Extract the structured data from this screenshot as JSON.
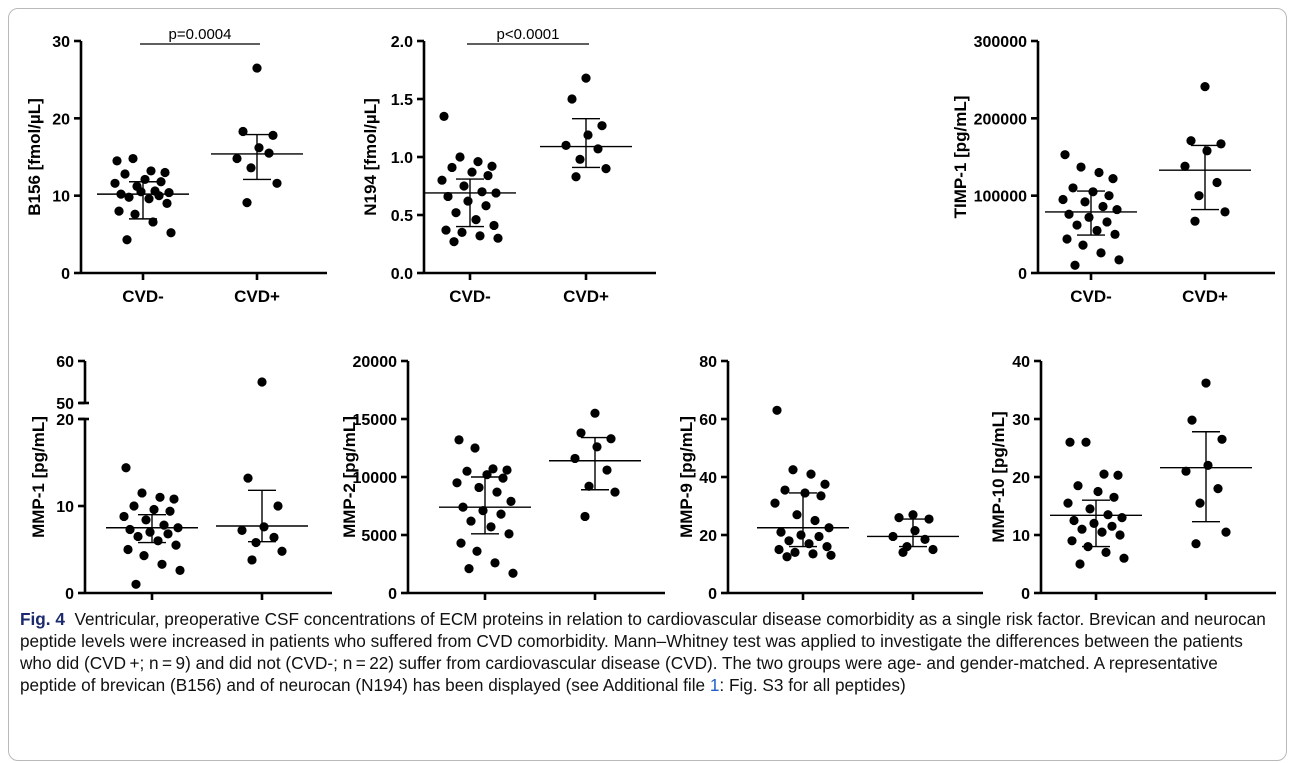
{
  "colors": {
    "marks": "#000000",
    "caption_label": "#1a2a6c",
    "caption_link": "#1f5fc8",
    "frame": "#b9b9b9"
  },
  "caption": {
    "label": "Fig. 4",
    "text_before_link": "Ventricular, preoperative CSF concentrations of ECM proteins in relation to cardiovascular disease comorbidity as a single risk factor. Brevican and neurocan peptide levels were increased in patients who suffered from CVD comorbidity. Mann–Whitney test was applied to investigate the differences between the patients who did (CVD +; n = 9) and did not (CVD-; n = 22) suffer from cardiovascular disease (CVD). The two groups were age- and gender-matched. A representative peptide of brevican (B156) and of neurocan (N194) has been displayed (see Additional file ",
    "link_text": "1",
    "text_after_link": ": Fig. S3 for all peptides)"
  },
  "chart_data": [
    {
      "type": "scatter",
      "ylabel": "B156 [fmol/µL]",
      "categories": [
        "CVD-",
        "CVD+"
      ],
      "ylim": [
        0,
        30
      ],
      "yticks": [
        0,
        10,
        20,
        30
      ],
      "yticklabels": [
        "0",
        "10",
        "20",
        "30"
      ],
      "significance": "p=0.0004",
      "series": [
        {
          "values": [
            14.5,
            14.8,
            13.2,
            13.0,
            12.8,
            12.1,
            11.8,
            11.6,
            11.2,
            10.6,
            10.4,
            10.2,
            10.5,
            10.0,
            9.8,
            9.6,
            9.0,
            8.0,
            7.6,
            6.6,
            5.2,
            4.3
          ],
          "median": 10.2,
          "q1": 7.0,
          "q3": 11.8
        },
        {
          "values": [
            26.5,
            18.3,
            17.8,
            16.2,
            14.8,
            15.5,
            13.6,
            11.6,
            9.1
          ],
          "median": 15.4,
          "q1": 12.1,
          "q3": 17.9
        }
      ]
    },
    {
      "type": "scatter",
      "ylabel": "N194 [fmol/µL]",
      "categories": [
        "CVD-",
        "CVD+"
      ],
      "ylim": [
        0,
        2.0
      ],
      "yticks": [
        0,
        0.5,
        1.0,
        1.5,
        2.0
      ],
      "yticklabels": [
        "0.0",
        "0.5",
        "1.0",
        "1.5",
        "2.0"
      ],
      "significance": "p<0.0001",
      "series": [
        {
          "values": [
            1.35,
            1.0,
            0.96,
            0.92,
            0.91,
            0.87,
            0.84,
            0.8,
            0.75,
            0.7,
            0.69,
            0.66,
            0.62,
            0.58,
            0.52,
            0.46,
            0.41,
            0.37,
            0.35,
            0.32,
            0.3,
            0.27
          ],
          "median": 0.69,
          "q1": 0.4,
          "q3": 0.81
        },
        {
          "values": [
            1.68,
            1.5,
            1.27,
            1.19,
            1.1,
            1.07,
            0.98,
            0.9,
            0.83
          ],
          "median": 1.09,
          "q1": 0.91,
          "q3": 1.33
        }
      ]
    },
    {
      "type": "scatter",
      "ylabel": "TIMP-1 [pg/mL]",
      "categories": [
        "CVD-",
        "CVD+"
      ],
      "ylim": [
        0,
        300000
      ],
      "yticks": [
        0,
        100000,
        200000,
        300000
      ],
      "yticklabels": [
        "0",
        "100000",
        "200000",
        "300000"
      ],
      "series": [
        {
          "values": [
            153000,
            137000,
            130000,
            122000,
            110000,
            105000,
            100000,
            95000,
            92000,
            86000,
            82000,
            76000,
            72000,
            66000,
            62000,
            55000,
            50000,
            44000,
            36000,
            26000,
            17000,
            10000
          ],
          "median": 79000,
          "q1": 49000,
          "q3": 106000
        },
        {
          "values": [
            241000,
            171000,
            167000,
            158000,
            138000,
            117000,
            100000,
            79000,
            67000
          ],
          "median": 133000,
          "q1": 82000,
          "q3": 165000
        }
      ]
    },
    {
      "type": "scatter",
      "ylabel": "MMP-1 [pg/mL]",
      "categories": [
        "CVD-",
        "CVD+"
      ],
      "ylim": [
        0,
        60
      ],
      "axis_break": [
        20,
        50
      ],
      "yticks": [
        0,
        10,
        20,
        50,
        60
      ],
      "yticklabels": [
        "0",
        "10",
        "20",
        "50",
        "60"
      ],
      "series": [
        {
          "values": [
            14.4,
            11.5,
            11.0,
            10.8,
            10.0,
            9.6,
            9.4,
            8.8,
            8.4,
            7.8,
            7.5,
            7.3,
            7.0,
            6.8,
            6.5,
            6.0,
            5.5,
            5.0,
            4.3,
            3.3,
            2.6,
            1.0
          ],
          "median": 7.5,
          "q1": 5.8,
          "q3": 9.0
        },
        {
          "values": [
            55.0,
            13.2,
            10.0,
            7.6,
            7.2,
            6.4,
            5.8,
            4.8,
            3.8
          ],
          "median": 7.7,
          "q1": 5.9,
          "q3": 11.8
        }
      ]
    },
    {
      "type": "scatter",
      "ylabel": "MMP-2 [pg/mL]",
      "categories": [
        "CVD-",
        "CVD+"
      ],
      "ylim": [
        0,
        20000
      ],
      "yticks": [
        0,
        5000,
        10000,
        15000,
        20000
      ],
      "yticklabels": [
        "0",
        "5000",
        "10000",
        "15000",
        "20000"
      ],
      "series": [
        {
          "values": [
            13200,
            12500,
            10700,
            10600,
            10500,
            10200,
            9900,
            9500,
            9100,
            8700,
            7900,
            7400,
            7100,
            6800,
            6200,
            5700,
            5100,
            4300,
            3600,
            2600,
            1700,
            2100
          ],
          "median": 7400,
          "q1": 5100,
          "q3": 10000
        },
        {
          "values": [
            15500,
            13800,
            13300,
            12600,
            11600,
            10600,
            9200,
            8700,
            6600
          ],
          "median": 11400,
          "q1": 8900,
          "q3": 13400
        }
      ]
    },
    {
      "type": "scatter",
      "ylabel": "MMP-9 [pg/mL]",
      "categories": [
        "CVD-",
        "CVD+"
      ],
      "ylim": [
        0,
        80
      ],
      "yticks": [
        0,
        20,
        40,
        60,
        80
      ],
      "yticklabels": [
        "0",
        "20",
        "40",
        "60",
        "80"
      ],
      "series": [
        {
          "values": [
            63.0,
            42.5,
            41.0,
            37.5,
            35.5,
            34.5,
            33.5,
            31.0,
            27.0,
            25.0,
            22.5,
            21.0,
            20.0,
            19.5,
            18.0,
            17.0,
            16.0,
            15.0,
            14.0,
            13.5,
            13.0,
            12.5
          ],
          "median": 22.5,
          "q1": 16.0,
          "q3": 34.5
        },
        {
          "values": [
            27.0,
            26.0,
            25.5,
            21.5,
            19.5,
            18.5,
            16.0,
            15.0,
            14.0
          ],
          "median": 19.5,
          "q1": 16.0,
          "q3": 25.5
        }
      ]
    },
    {
      "type": "scatter",
      "ylabel": "MMP-10 [pg/mL]",
      "categories": [
        "CVD-",
        "CVD+"
      ],
      "ylim": [
        0,
        40
      ],
      "yticks": [
        0,
        10,
        20,
        30,
        40
      ],
      "yticklabels": [
        "0",
        "10",
        "20",
        "30",
        "40"
      ],
      "series": [
        {
          "values": [
            26.0,
            26.0,
            20.5,
            20.3,
            18.5,
            17.5,
            16.5,
            15.5,
            14.5,
            13.5,
            13.0,
            12.5,
            12.0,
            11.5,
            11.0,
            10.5,
            10.0,
            9.0,
            8.0,
            7.0,
            6.0,
            5.0
          ],
          "median": 13.4,
          "q1": 8.0,
          "q3": 16.0
        },
        {
          "values": [
            36.2,
            29.8,
            26.5,
            22.0,
            21.0,
            18.0,
            15.5,
            10.5,
            8.5
          ],
          "median": 21.6,
          "q1": 12.3,
          "q3": 27.8
        }
      ]
    }
  ]
}
